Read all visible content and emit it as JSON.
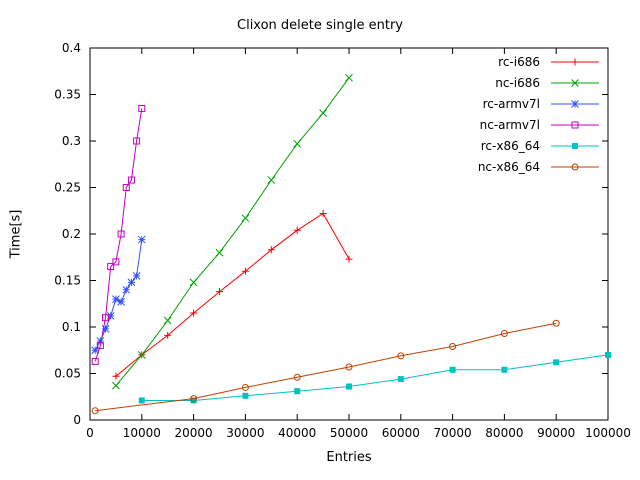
{
  "chart_data": {
    "type": "line",
    "title": "Clixon delete single entry",
    "xlabel": "Entries",
    "ylabel": "Time[s]",
    "xlim": [
      0,
      100000
    ],
    "ylim": [
      0,
      0.4
    ],
    "grid": false,
    "legend_position": "top-right-inside",
    "background_color": "#ffffff",
    "axis_color": "#000000",
    "xticks": {
      "values": [
        0,
        10000,
        20000,
        30000,
        40000,
        50000,
        60000,
        70000,
        80000,
        90000,
        100000
      ],
      "labels": [
        "0",
        "10000",
        "20000",
        "30000",
        "40000",
        "50000",
        "60000",
        "70000",
        "80000",
        "90000",
        "100000"
      ]
    },
    "yticks": {
      "values": [
        0,
        0.05,
        0.1,
        0.15,
        0.2,
        0.25,
        0.3,
        0.35,
        0.4
      ],
      "labels": [
        "0",
        "0.05",
        "0.1",
        "0.15",
        "0.2",
        "0.25",
        "0.3",
        "0.35",
        "0.4"
      ]
    },
    "series": [
      {
        "name": "rc-i686",
        "color": "#ff0000",
        "marker": "plus",
        "x": [
          5000,
          10000,
          15000,
          20000,
          25000,
          30000,
          35000,
          40000,
          45000,
          50000
        ],
        "y": [
          0.047,
          0.07,
          0.091,
          0.115,
          0.138,
          0.16,
          0.183,
          0.204,
          0.222,
          0.173
        ]
      },
      {
        "name": "nc-i686",
        "color": "#00a000",
        "marker": "cross",
        "x": [
          5000,
          10000,
          15000,
          20000,
          25000,
          30000,
          35000,
          40000,
          45000,
          50000
        ],
        "y": [
          0.037,
          0.07,
          0.107,
          0.148,
          0.18,
          0.217,
          0.258,
          0.297,
          0.33,
          0.368
        ]
      },
      {
        "name": "rc-armv7l",
        "color": "#3050ff",
        "marker": "asterisk",
        "x": [
          1000,
          2000,
          3000,
          4000,
          5000,
          6000,
          7000,
          8000,
          9000,
          10000
        ],
        "y": [
          0.075,
          0.085,
          0.098,
          0.112,
          0.13,
          0.127,
          0.14,
          0.148,
          0.155,
          0.194
        ]
      },
      {
        "name": "nc-armv7l",
        "color": "#c000c0",
        "marker": "square-open",
        "x": [
          1000,
          2000,
          3000,
          4000,
          5000,
          6000,
          7000,
          8000,
          9000,
          10000
        ],
        "y": [
          0.063,
          0.08,
          0.11,
          0.165,
          0.17,
          0.2,
          0.25,
          0.258,
          0.3,
          0.335
        ]
      },
      {
        "name": "rc-x86_64",
        "color": "#00c0c0",
        "marker": "square-filled",
        "x": [
          10000,
          20000,
          30000,
          40000,
          50000,
          60000,
          70000,
          80000,
          90000,
          100000
        ],
        "y": [
          0.021,
          0.021,
          0.026,
          0.031,
          0.036,
          0.044,
          0.054,
          0.054,
          0.062,
          0.07
        ]
      },
      {
        "name": "nc-x86_64",
        "color": "#c04000",
        "marker": "circle-open",
        "x": [
          1000,
          20000,
          30000,
          40000,
          50000,
          60000,
          70000,
          80000,
          90000
        ],
        "y": [
          0.01,
          0.023,
          0.035,
          0.046,
          0.057,
          0.069,
          0.079,
          0.093,
          0.104
        ]
      }
    ]
  }
}
